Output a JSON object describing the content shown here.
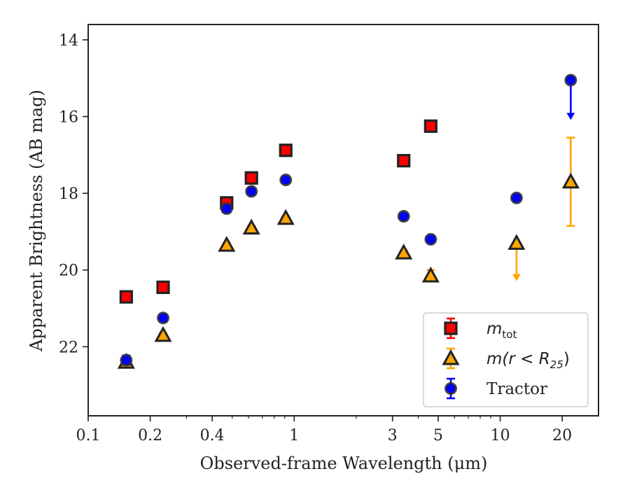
{
  "chart_data": {
    "type": "scatter",
    "xlabel": "Observed-frame Wavelength (μm)",
    "ylabel": "Apparent Brightness (AB mag)",
    "x_scale": "log",
    "y_inverted": true,
    "xlim": [
      0.1,
      30
    ],
    "ylim": [
      23.8,
      13.6
    ],
    "x_ticks": [
      {
        "value": 0.1,
        "label": "0.1"
      },
      {
        "value": 0.2,
        "label": "0.2"
      },
      {
        "value": 0.4,
        "label": "0.4"
      },
      {
        "value": 1,
        "label": "1"
      },
      {
        "value": 3,
        "label": "3"
      },
      {
        "value": 5,
        "label": "5"
      },
      {
        "value": 10,
        "label": "10"
      },
      {
        "value": 20,
        "label": "20"
      }
    ],
    "y_ticks": [
      {
        "value": 14,
        "label": "14"
      },
      {
        "value": 16,
        "label": "16"
      },
      {
        "value": 18,
        "label": "18"
      },
      {
        "value": 20,
        "label": "20"
      },
      {
        "value": 22,
        "label": "22"
      }
    ],
    "grid": false,
    "legend_position": "bottom-right",
    "series": [
      {
        "name": "m_tot",
        "legend_label": "m",
        "legend_sub": "tot",
        "marker": "square",
        "color": "#ff0000",
        "edge_color": "#222222",
        "err_color": "#ff0000",
        "points": [
          {
            "x": 0.153,
            "y": 20.7,
            "err": 0.08
          },
          {
            "x": 0.231,
            "y": 20.45,
            "err": 0.08
          },
          {
            "x": 0.47,
            "y": 18.25,
            "err": 0.1
          },
          {
            "x": 0.62,
            "y": 17.6,
            "err": 0.08
          },
          {
            "x": 0.91,
            "y": 16.88,
            "err": 0.08
          },
          {
            "x": 3.4,
            "y": 17.15,
            "err": 0.08
          },
          {
            "x": 4.6,
            "y": 16.25,
            "err": 0.08
          }
        ]
      },
      {
        "name": "m(r < R_25)",
        "legend_label": "m(r < R",
        "legend_sub": "25",
        "legend_suffix": ")",
        "marker": "triangle",
        "color": "#ffa500",
        "edge_color": "#222222",
        "err_color": "#ffa500",
        "points": [
          {
            "x": 0.153,
            "y": 22.4,
            "err": 0.12
          },
          {
            "x": 0.231,
            "y": 21.7,
            "err": 0.06
          },
          {
            "x": 0.47,
            "y": 19.35,
            "err": 0.05
          },
          {
            "x": 0.62,
            "y": 18.9,
            "err": 0.05
          },
          {
            "x": 0.91,
            "y": 18.65,
            "err": 0.05
          },
          {
            "x": 3.4,
            "y": 19.55,
            "err": 0.05
          },
          {
            "x": 4.6,
            "y": 20.15,
            "err": 0.15
          },
          {
            "x": 12,
            "y": 19.3,
            "upper_limit": true,
            "arrow_to": 20.25
          },
          {
            "x": 22,
            "y": 17.7,
            "err": 1.15
          }
        ]
      },
      {
        "name": "Tractor",
        "legend_label": "Tractor",
        "marker": "circle",
        "color": "#0000ff",
        "edge_color": "#333333",
        "err_color": "#0000ff",
        "points": [
          {
            "x": 0.153,
            "y": 22.35,
            "err": 0.12
          },
          {
            "x": 0.231,
            "y": 21.25,
            "err": 0.1
          },
          {
            "x": 0.47,
            "y": 18.4,
            "err": 0.1
          },
          {
            "x": 0.62,
            "y": 17.95,
            "err": 0.08
          },
          {
            "x": 0.91,
            "y": 17.65,
            "err": 0.08
          },
          {
            "x": 3.4,
            "y": 18.6,
            "err": 0.08
          },
          {
            "x": 4.6,
            "y": 19.2,
            "err": 0.08
          },
          {
            "x": 12,
            "y": 18.12,
            "err": 0.08
          },
          {
            "x": 22,
            "y": 15.05,
            "upper_limit": true,
            "arrow_to": 16.05
          }
        ]
      }
    ]
  }
}
